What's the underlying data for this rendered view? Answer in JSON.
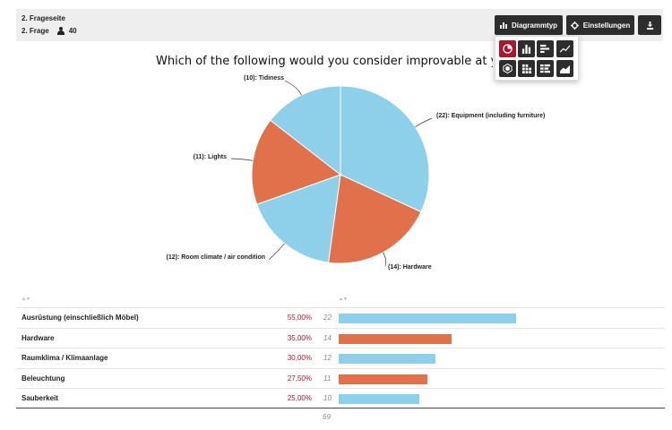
{
  "header": {
    "page_label": "2. Frageseite",
    "question_label": "2. Frage",
    "respondent_count": "40"
  },
  "toolbar": {
    "chart_type_label": "Diagrammtyp",
    "settings_label": "Einstellungen"
  },
  "chart_picker": {
    "items": [
      "pie-chart-icon",
      "bar-chart-icon",
      "horizontal-bar-icon",
      "line-chart-icon",
      "radar-chart-icon",
      "stacked-column-icon",
      "stacked-bar-icon",
      "area-chart-icon"
    ],
    "active": "pie-chart-icon"
  },
  "colors": {
    "blue": "#8ecfea",
    "orange": "#e0714a",
    "accent": "#a5182f",
    "dark": "#2d2d2d"
  },
  "chart_data": {
    "type": "pie",
    "title": "Which of the following would you consider improvable at your workp",
    "categories": [
      "Equipment (including furniture)",
      "Hardware",
      "Room climate / air condition",
      "Lights",
      "Tidiness"
    ],
    "values": [
      22,
      14,
      12,
      11,
      10
    ],
    "labels": [
      "(22): Equipment (including furniture)",
      "(14): Hardware",
      "(12): Room climate / air condition",
      "(11): Lights",
      "(10): Tidiness"
    ],
    "colors": [
      "#8ecfea",
      "#e0714a",
      "#8ecfea",
      "#e0714a",
      "#8ecfea"
    ]
  },
  "table": {
    "rows": [
      {
        "name": "Ausrüstung (einschließlich Möbel)",
        "percent": "55,00%",
        "count": "22",
        "value": 22,
        "color": "#8ecfea"
      },
      {
        "name": "Hardware",
        "percent": "35,00%",
        "count": "14",
        "value": 14,
        "color": "#e0714a"
      },
      {
        "name": "Raumklima / Klimaanlage",
        "percent": "30,00%",
        "count": "12",
        "value": 12,
        "color": "#8ecfea"
      },
      {
        "name": "Beleuchtung",
        "percent": "27,50%",
        "count": "11",
        "value": 11,
        "color": "#e0714a"
      },
      {
        "name": "Sauberkeit",
        "percent": "25,00%",
        "count": "10",
        "value": 10,
        "color": "#8ecfea"
      }
    ],
    "total": "69",
    "sort_indicator": "▲▼"
  }
}
